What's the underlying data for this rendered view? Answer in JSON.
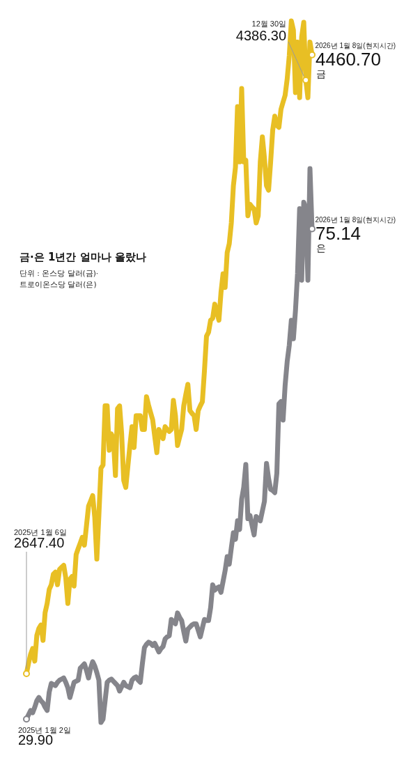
{
  "chart_data": [
    {
      "type": "line",
      "title": "금·은 1년간 얼마나 올랐나",
      "subtitle": "단위 : 온스당 달러(금)·\n트로이온스당 달러(은)",
      "tick_labels": false,
      "categories": [
        null,
        null,
        null,
        null,
        null,
        null,
        null,
        null,
        null,
        null,
        null,
        null,
        null,
        null,
        null,
        null,
        null,
        null,
        null,
        null,
        null,
        null,
        null,
        null,
        null,
        null,
        null,
        null,
        null,
        null,
        null,
        null,
        null,
        null,
        null,
        null,
        null,
        null,
        null,
        null,
        null,
        null,
        null,
        null,
        null,
        null,
        null,
        null,
        null,
        null,
        null,
        null,
        null,
        null,
        null,
        null,
        null,
        null,
        null,
        null,
        null,
        null,
        null,
        null,
        null,
        null,
        null,
        null,
        null,
        null,
        null,
        null,
        null,
        null,
        null,
        null,
        null,
        null,
        null,
        null,
        null,
        null,
        null,
        null,
        null,
        null,
        null,
        null,
        null,
        null,
        null,
        null,
        null,
        null,
        null,
        null,
        null,
        null,
        null,
        null,
        null,
        null,
        null,
        null,
        null,
        null,
        null,
        null,
        null,
        null,
        null,
        null,
        null,
        null,
        null,
        null,
        null,
        null,
        null,
        null,
        null,
        null,
        null,
        null,
        null,
        null,
        null,
        null,
        null,
        null,
        null,
        null,
        null,
        null,
        null,
        null,
        null,
        null,
        null
      ],
      "series": [
        {
          "name": "금",
          "color": "#e8bf24",
          "values": [
            2647.4,
            2678,
            2704,
            2721,
            2684,
            2759,
            2780,
            2790,
            2745,
            2826,
            2853,
            2894,
            2908,
            2939,
            2945,
            2908,
            2953,
            2959,
            2965,
            2928,
            2853,
            2924,
            2932,
            2904,
            2996,
            3014,
            3030,
            3047,
            3024,
            3081,
            3138,
            3153,
            3169,
            3106,
            2983,
            3112,
            3249,
            3259,
            3432,
            3432,
            3302,
            3350,
            3336,
            3228,
            3424,
            3432,
            3350,
            3214,
            3193,
            3255,
            3316,
            3371,
            3310,
            3403,
            3403,
            3403,
            3363,
            3363,
            3459,
            3434,
            3412,
            3391,
            3342,
            3295,
            3363,
            3348,
            3336,
            3371,
            3363,
            3357,
            3363,
            3448,
            3403,
            3316,
            3340,
            3363,
            3432,
            3465,
            3495,
            3418,
            3410,
            3403,
            3363,
            3418,
            3432,
            3444,
            3534,
            3636,
            3648,
            3683,
            3689,
            3730,
            3707,
            3683,
            3764,
            3819,
            3779,
            3881,
            3907,
            3968,
            4077,
            4131,
            4309,
            4147,
            4362,
            4147,
            4152,
            3989,
            4023,
            4015,
            4009,
            3968,
            3989,
            4147,
            4220,
            4158,
            4077,
            4064,
            4147,
            4240,
            4281,
            4254,
            4248,
            4301,
            4322,
            4342,
            4390,
            4458,
            4560,
            4533,
            4350,
            4498,
            4335,
            4513,
            4556,
            4386.3,
            4335,
            4498,
            4460.7
          ],
          "value_labels": [
            "2647.40",
            null,
            null,
            null,
            null,
            null,
            null,
            null,
            null,
            null,
            null,
            null,
            null,
            null,
            null,
            null,
            null,
            null,
            null,
            null,
            null,
            null,
            null,
            null,
            null,
            null,
            null,
            null,
            null,
            null,
            null,
            null,
            null,
            null,
            null,
            null,
            null,
            null,
            null,
            null,
            null,
            null,
            null,
            null,
            null,
            null,
            null,
            null,
            null,
            null,
            null,
            null,
            null,
            null,
            null,
            null,
            null,
            null,
            null,
            null,
            null,
            null,
            null,
            null,
            null,
            null,
            null,
            null,
            null,
            null,
            null,
            null,
            null,
            null,
            null,
            null,
            null,
            null,
            null,
            null,
            null,
            null,
            null,
            null,
            null,
            null,
            null,
            null,
            null,
            null,
            null,
            null,
            null,
            null,
            null,
            null,
            null,
            null,
            null,
            null,
            null,
            null,
            null,
            null,
            null,
            null,
            null,
            null,
            null,
            null,
            null,
            null,
            null,
            null,
            null,
            null,
            null,
            null,
            null,
            null,
            null,
            null,
            null,
            null,
            null,
            null,
            null,
            null,
            null,
            null,
            null,
            null,
            null,
            null,
            null,
            "4386.30",
            null,
            null,
            "4460.70"
          ]
        }
      ],
      "annotations": [
        "2025년 1월 6일",
        "12월 30일",
        "2026년 1월 8일(현지시간)"
      ]
    },
    {
      "type": "line",
      "tick_labels": false,
      "categories": [
        null,
        null,
        null,
        null,
        null,
        null,
        null,
        null,
        null,
        null,
        null,
        null,
        null,
        null,
        null,
        null,
        null,
        null,
        null,
        null,
        null,
        null,
        null,
        null,
        null,
        null,
        null,
        null,
        null,
        null,
        null,
        null,
        null,
        null,
        null,
        null,
        null,
        null,
        null,
        null,
        null,
        null,
        null,
        null,
        null,
        null,
        null,
        null,
        null,
        null,
        null,
        null,
        null,
        null,
        null,
        null,
        null,
        null,
        null,
        null,
        null,
        null,
        null,
        null,
        null,
        null,
        null,
        null,
        null,
        null,
        null,
        null,
        null,
        null,
        null,
        null,
        null,
        null,
        null,
        null,
        null,
        null,
        null,
        null,
        null,
        null,
        null,
        null,
        null,
        null,
        null,
        null,
        null,
        null,
        null,
        null,
        null,
        null,
        null,
        null,
        null,
        null,
        null,
        null,
        null,
        null,
        null,
        null,
        null,
        null,
        null,
        null,
        null,
        null,
        null,
        null,
        null,
        null,
        null,
        null,
        null,
        null,
        null,
        null,
        null,
        null,
        null,
        null,
        null,
        null,
        null,
        null,
        null,
        null,
        null,
        null,
        null,
        null,
        null
      ],
      "series": [
        {
          "name": "은",
          "color": "#85858b",
          "values": [
            29.9,
            30.3,
            30.7,
            30.5,
            31.0,
            31.6,
            31.9,
            31.6,
            31.4,
            31.0,
            30.7,
            32.4,
            33.2,
            33.1,
            33.0,
            33.3,
            33.5,
            33.6,
            33.7,
            33.3,
            32.8,
            31.9,
            32.6,
            33.3,
            33.4,
            33.5,
            34.6,
            34.8,
            35.0,
            34.4,
            33.7,
            34.6,
            35.2,
            34.8,
            34.2,
            33.5,
            29.6,
            29.9,
            31.6,
            33.3,
            33.5,
            33.6,
            33.4,
            33.2,
            33.0,
            32.5,
            32.9,
            33.3,
            33.0,
            32.9,
            32.8,
            33.5,
            33.7,
            33.8,
            33.5,
            33.3,
            35.0,
            36.5,
            36.8,
            37.0,
            36.9,
            36.7,
            36.9,
            36.5,
            36.1,
            36.4,
            36.6,
            37.3,
            37.5,
            37.6,
            39.1,
            38.9,
            38.7,
            39.7,
            39.3,
            39.0,
            38.0,
            37.1,
            38.2,
            38.4,
            38.6,
            38.7,
            38.7,
            38.1,
            37.5,
            38.3,
            39.1,
            39.0,
            39.0,
            40.2,
            42.3,
            41.8,
            42.0,
            42.1,
            41.6,
            42.6,
            43.6,
            44.9,
            44.2,
            45.7,
            47.1,
            46.5,
            48.2,
            47.4,
            50.2,
            51.3,
            53.4,
            48.4,
            48.7,
            47.8,
            46.9,
            48.6,
            48.4,
            48.2,
            49.1,
            50.0,
            53.5,
            52.1,
            51.1,
            51.0,
            50.8,
            52.6,
            59.0,
            59.2,
            57.5,
            60.7,
            62.9,
            64.4,
            66.7,
            65.0,
            67.6,
            71.0,
            77.0,
            70.4,
            77.6,
            77.0,
            70.4,
            80.7,
            75.14
          ],
          "value_labels": [
            "29.90",
            null,
            null,
            null,
            null,
            null,
            null,
            null,
            null,
            null,
            null,
            null,
            null,
            null,
            null,
            null,
            null,
            null,
            null,
            null,
            null,
            null,
            null,
            null,
            null,
            null,
            null,
            null,
            null,
            null,
            null,
            null,
            null,
            null,
            null,
            null,
            null,
            null,
            null,
            null,
            null,
            null,
            null,
            null,
            null,
            null,
            null,
            null,
            null,
            null,
            null,
            null,
            null,
            null,
            null,
            null,
            null,
            null,
            null,
            null,
            null,
            null,
            null,
            null,
            null,
            null,
            null,
            null,
            null,
            null,
            null,
            null,
            null,
            null,
            null,
            null,
            null,
            null,
            null,
            null,
            null,
            null,
            null,
            null,
            null,
            null,
            null,
            null,
            null,
            null,
            null,
            null,
            null,
            null,
            null,
            null,
            null,
            null,
            null,
            null,
            null,
            null,
            null,
            null,
            null,
            null,
            null,
            null,
            null,
            null,
            null,
            null,
            null,
            null,
            null,
            null,
            null,
            null,
            null,
            null,
            null,
            null,
            null,
            null,
            null,
            null,
            null,
            null,
            null,
            null,
            null,
            null,
            null,
            null,
            null,
            null,
            null,
            null,
            "75.14"
          ]
        }
      ],
      "annotations": [
        "2025년 1월 2일",
        "2026년 1월 8일(현지시간)"
      ]
    }
  ]
}
